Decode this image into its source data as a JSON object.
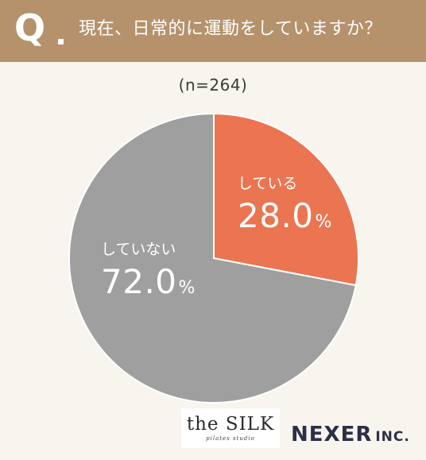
{
  "header": {
    "q_mark": "Q",
    "question": "現在、日常的に運動をしていますか？",
    "bg_color": "#b5926b"
  },
  "sample": "(n=264)",
  "chart_data": {
    "type": "pie",
    "title": "現在、日常的に運動をしていますか？",
    "categories": [
      "している",
      "していない"
    ],
    "values": [
      28.0,
      72.0
    ],
    "value_labels": [
      "28.0",
      "72.0"
    ],
    "unit": "%",
    "colors": [
      "#ea7550",
      "#9f9f9f"
    ],
    "start_angle_deg": 0,
    "direction": "clockwise"
  },
  "logos": {
    "silk_main": "the SILK",
    "silk_sub": "pilates studio",
    "nexer_main": "NEXER",
    "nexer_inc": "INC."
  }
}
